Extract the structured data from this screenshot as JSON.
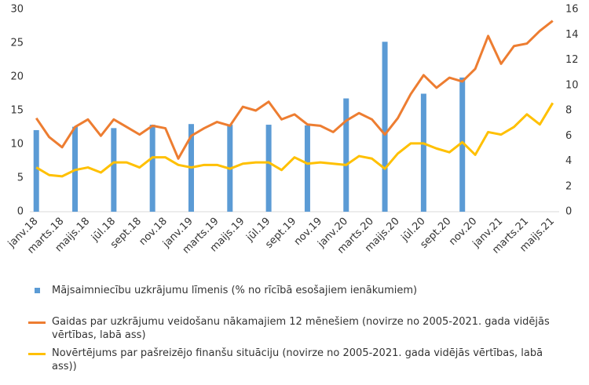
{
  "chart_data": {
    "type": "bar-line",
    "categories": [
      "janv.18",
      null,
      "marts.18",
      null,
      "maijs.18",
      null,
      "jūl.18",
      null,
      "sept.18",
      null,
      "nov.18",
      null,
      "janv.19",
      null,
      "marts.19",
      null,
      "maijs.19",
      null,
      "jūl.19",
      null,
      "sept.19",
      null,
      "nov.19",
      null,
      "janv.20",
      null,
      "marts.20",
      null,
      "maijs.20",
      null,
      "jūl.20",
      null,
      "sept.20",
      null,
      "nov.20",
      null,
      "janv.21",
      null,
      "marts.21",
      null,
      "maijs.21"
    ],
    "series": [
      {
        "name": "Mājsaimniecību uzkrājumu līmenis (% no rīcībā esošajiem ienākumiem)",
        "type": "bar",
        "color": "#5b9bd5",
        "values": [
          12.1,
          null,
          null,
          12.6,
          null,
          null,
          12.4,
          null,
          null,
          12.9,
          null,
          null,
          13.0,
          null,
          null,
          12.9,
          null,
          null,
          12.9,
          null,
          null,
          12.8,
          null,
          null,
          16.8,
          null,
          null,
          25.2,
          null,
          null,
          17.5,
          null,
          null,
          19.9,
          null,
          null,
          null,
          null,
          null,
          null,
          null
        ]
      },
      {
        "name": "Gaidas par uzkrājumu veidošanu nākamajiem 12 mēnešiem  (novirze no 2005-2021. gada vidējās vērtības, labā ass)",
        "type": "line",
        "axis": "y2",
        "color": "#ed7d31",
        "values": [
          7.4,
          5.9,
          5.1,
          6.7,
          7.3,
          6.0,
          7.3,
          6.7,
          6.1,
          6.8,
          6.6,
          4.2,
          6.0,
          6.6,
          7.1,
          6.8,
          8.3,
          8.0,
          8.7,
          7.3,
          7.7,
          6.9,
          6.8,
          6.3,
          7.2,
          7.8,
          7.3,
          6.1,
          7.4,
          9.3,
          10.8,
          9.8,
          10.6,
          10.3,
          11.3,
          13.9,
          11.7,
          13.1,
          13.3,
          14.3,
          15.1
        ]
      },
      {
        "name": "Novērtējums par pašreizējo finanšu situāciju (novirze no 2005-2021. gada vidējās vērtības, labā ass))",
        "type": "line",
        "axis": "y2",
        "color": "#ffc000",
        "values": [
          3.5,
          2.9,
          2.8,
          3.3,
          3.5,
          3.1,
          3.9,
          3.9,
          3.5,
          4.3,
          4.3,
          3.7,
          3.5,
          3.7,
          3.7,
          3.4,
          3.8,
          3.9,
          3.9,
          3.3,
          4.3,
          3.8,
          3.9,
          3.8,
          3.7,
          4.4,
          4.2,
          3.4,
          4.6,
          5.4,
          5.4,
          5.0,
          4.7,
          5.5,
          4.5,
          6.3,
          6.1,
          6.7,
          7.7,
          6.9,
          8.6
        ]
      }
    ],
    "ylim": [
      0,
      30
    ],
    "yticks": [
      0,
      5,
      10,
      15,
      20,
      25,
      30
    ],
    "y2lim": [
      0,
      16
    ],
    "y2ticks": [
      0,
      2,
      4,
      6,
      8,
      10,
      12,
      14,
      16
    ],
    "grid": false,
    "legend": "bottom"
  }
}
